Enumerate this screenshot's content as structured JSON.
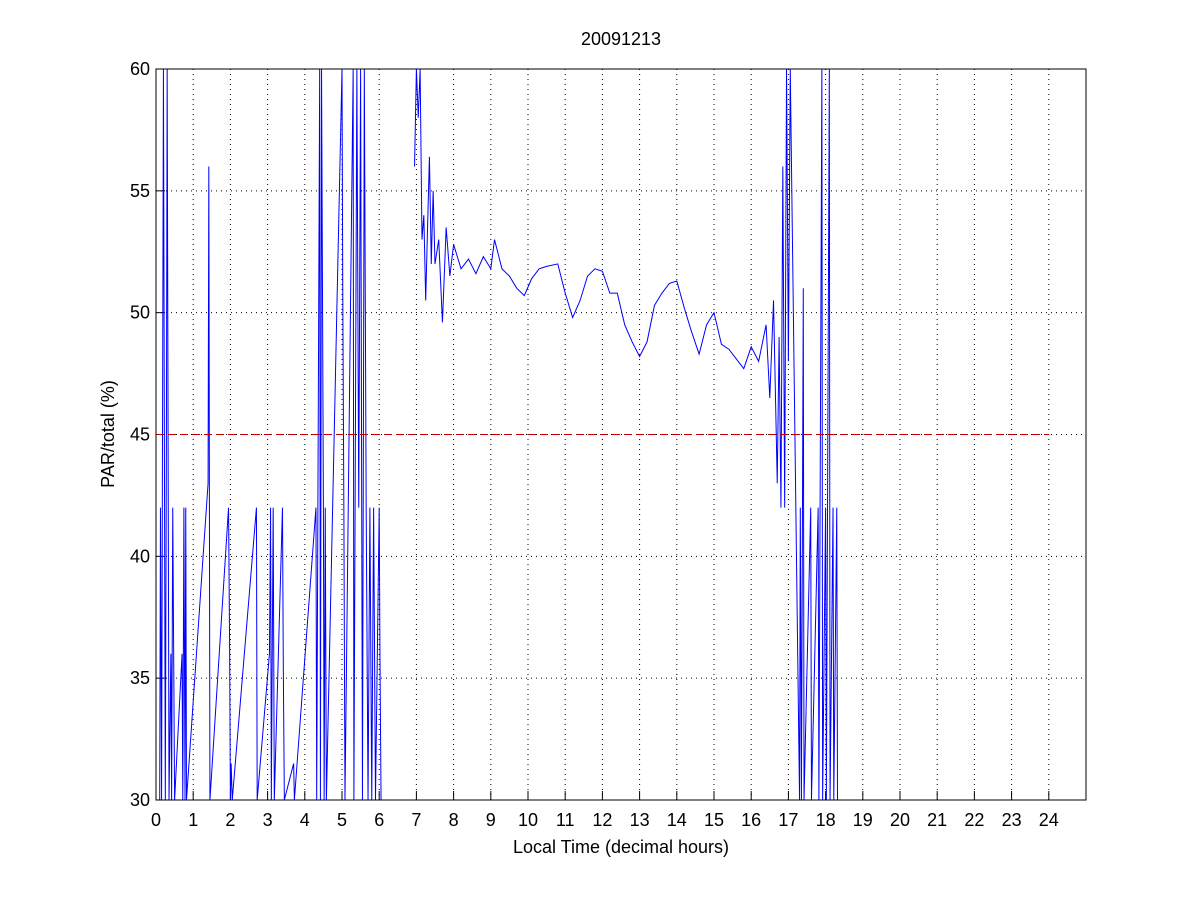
{
  "chart_data": {
    "type": "line",
    "title": "20091213",
    "x_label": "Local Time (decimal hours)",
    "y_label": "PAR/total (%)",
    "xlim": [
      0,
      25
    ],
    "ylim": [
      30,
      60
    ],
    "xticks": [
      0,
      1,
      2,
      3,
      4,
      5,
      6,
      7,
      8,
      9,
      10,
      11,
      12,
      13,
      14,
      15,
      16,
      17,
      18,
      19,
      20,
      21,
      22,
      23,
      24
    ],
    "yticks": [
      30,
      35,
      40,
      45,
      50,
      55,
      60
    ],
    "grid": true,
    "series": [
      {
        "color": "#0000ff",
        "x": [
          0.1,
          0.12,
          0.15,
          0.2,
          0.25,
          0.28,
          0.3,
          0.35,
          0.4,
          0.42,
          0.45,
          0.5,
          0.7,
          0.72,
          0.75,
          0.78,
          0.8,
          0.82,
          1.4,
          1.42,
          1.45,
          1.95,
          1.98,
          2.0,
          2.02,
          2.05,
          2.7,
          2.72,
          3.05,
          3.08,
          3.1,
          3.15,
          3.18,
          3.4,
          3.42,
          3.45,
          3.7,
          3.72,
          4.3,
          4.32,
          4.4,
          4.42,
          4.45,
          4.5,
          4.52,
          4.55,
          4.58,
          5.0,
          5.02,
          5.05,
          5.08,
          5.3,
          5.32,
          5.4,
          5.45,
          5.5,
          5.55,
          5.6,
          5.65,
          5.7,
          5.75,
          5.8,
          5.85,
          5.9,
          6.0,
          6.02,
          6.05,
          6.5,
          6.95,
          7.0,
          7.05,
          7.1,
          7.15,
          7.2,
          7.25,
          7.3,
          7.35,
          7.4,
          7.45,
          7.5,
          7.6,
          7.7,
          7.8,
          7.9,
          8.0,
          8.2,
          8.4,
          8.6,
          8.8,
          9.0,
          9.1,
          9.3,
          9.5,
          9.7,
          9.9,
          10.1,
          10.3,
          10.5,
          10.8,
          11.0,
          11.2,
          11.4,
          11.6,
          11.8,
          12.0,
          12.2,
          12.4,
          12.6,
          12.8,
          13.0,
          13.2,
          13.4,
          13.6,
          13.8,
          14.0,
          14.2,
          14.4,
          14.6,
          14.8,
          15.0,
          15.2,
          15.4,
          15.6,
          15.8,
          16.0,
          16.2,
          16.4,
          16.5,
          16.6,
          16.7,
          16.75,
          16.8,
          16.85,
          16.9,
          16.95,
          17.0,
          17.05,
          17.3,
          17.32,
          17.35,
          17.4,
          17.42,
          17.6,
          17.62,
          17.8,
          17.82,
          17.9,
          17.92,
          18.0,
          18.02,
          18.1,
          18.12,
          18.2,
          18.22,
          18.3,
          18.32
        ],
        "values": [
          30,
          42,
          30,
          60,
          30,
          45,
          60,
          30,
          36,
          30,
          42,
          30,
          36,
          30,
          42,
          30,
          42,
          30,
          43,
          56,
          30,
          42,
          36,
          30,
          31.5,
          30,
          42,
          30,
          36,
          42,
          30,
          42,
          30,
          42,
          36,
          30,
          31.5,
          30,
          42,
          30,
          60,
          30,
          60,
          42,
          30,
          42,
          30,
          60,
          51,
          42,
          30,
          60,
          30,
          60,
          42,
          60,
          30,
          60,
          42,
          30,
          42,
          30,
          42,
          30,
          42,
          36,
          30,
          null,
          56,
          60,
          58,
          60,
          53,
          54,
          50.5,
          53.5,
          56.4,
          52,
          55,
          52,
          53,
          49.6,
          53.5,
          51.5,
          52.8,
          51.8,
          52.2,
          51.6,
          52.3,
          51.8,
          53,
          51.8,
          51.5,
          51,
          50.7,
          51.4,
          51.8,
          51.9,
          52,
          50.8,
          49.8,
          50.5,
          51.5,
          51.8,
          51.7,
          50.8,
          50.8,
          49.5,
          48.8,
          48.2,
          48.8,
          50.3,
          50.8,
          51.2,
          51.3,
          50.2,
          49.2,
          48.3,
          49.5,
          50,
          48.7,
          48.5,
          48.1,
          47.7,
          48.6,
          48,
          49.5,
          46.5,
          50.5,
          43,
          49,
          42,
          56,
          42,
          60,
          48,
          60,
          30,
          42,
          30,
          51,
          30,
          42,
          30,
          42,
          30,
          60,
          30,
          42,
          30,
          60,
          30,
          42,
          30,
          42,
          30
        ]
      }
    ],
    "reference_line": {
      "y": 45,
      "x": [
        0,
        24
      ],
      "color": "#c00000"
    }
  }
}
